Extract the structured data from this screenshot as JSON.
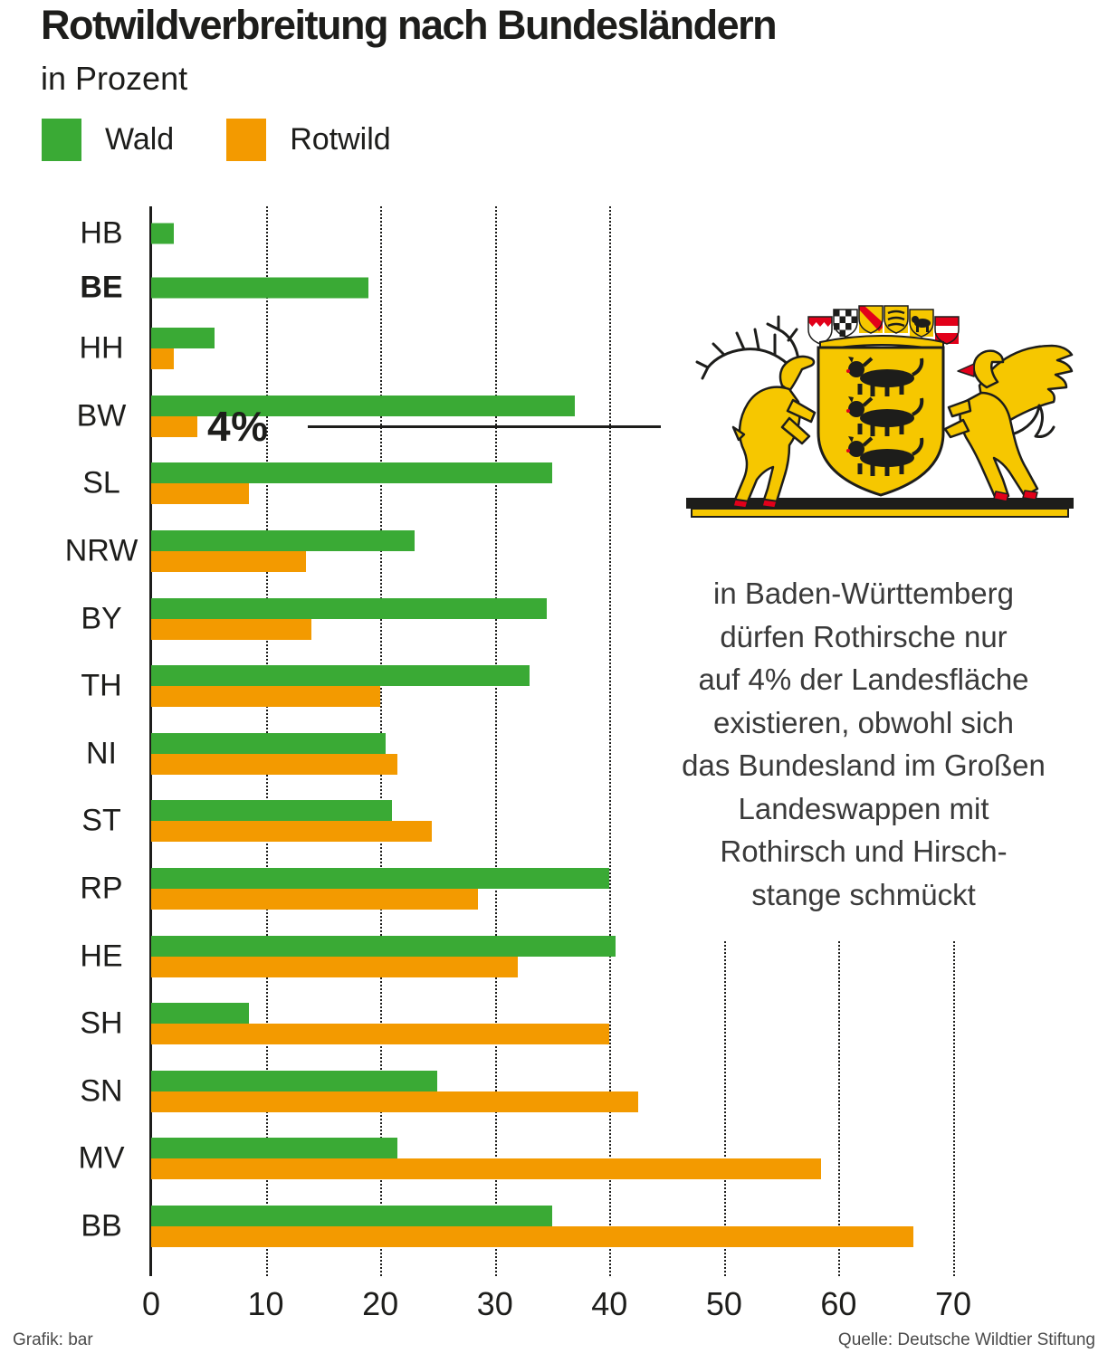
{
  "header": {
    "title": "Rotwildverbreitung nach Bundesländern",
    "subtitle": "in Prozent"
  },
  "colors": {
    "wald_green": "#3aaa35",
    "rotwild_orange": "#f39a00",
    "ink": "#1d1d1b",
    "wappen_gold": "#f6c700",
    "wappen_red": "#e2001a"
  },
  "legend": [
    {
      "label": "Wald",
      "color": "#3aaa35"
    },
    {
      "label": "Rotwild",
      "color": "#f39a00"
    }
  ],
  "chart_data": {
    "type": "bar",
    "orientation": "horizontal",
    "unit": "percent",
    "title": "Rotwildverbreitung nach Bundesländern",
    "subtitle": "in Prozent",
    "grid": "dotted-vertical",
    "legend_position": "top-left",
    "xlim": [
      0,
      70
    ],
    "x_ticks": [
      0,
      10,
      20,
      30,
      40,
      50,
      60,
      70
    ],
    "categories": [
      "HB",
      "BE",
      "HH",
      "BW",
      "SL",
      "NRW",
      "BY",
      "TH",
      "NI",
      "ST",
      "RP",
      "HE",
      "SH",
      "SN",
      "MV",
      "BB"
    ],
    "bold_category": "BE",
    "series": [
      {
        "name": "Wald",
        "color": "#3aaa35",
        "values": [
          2,
          19,
          5.5,
          37,
          35,
          23,
          34.5,
          33,
          20.5,
          21,
          40,
          40.5,
          8.5,
          25,
          21.5,
          35
        ]
      },
      {
        "name": "Rotwild",
        "color": "#f39a00",
        "values": [
          0,
          0,
          2,
          4,
          8.5,
          13.5,
          14,
          20,
          21.5,
          24.5,
          28.5,
          32,
          40,
          42.5,
          58.5,
          66.5
        ]
      }
    ],
    "annotation": {
      "label": "4%",
      "category": "BW",
      "series": "Rotwild"
    }
  },
  "side_note": {
    "lines": [
      "in Baden-Württemberg",
      "dürfen Rothirsche nur",
      "auf 4% der Landesfläche",
      "existieren, obwohl sich",
      "das Bundesland im Großen",
      "Landeswappen mit",
      "Rothirsch und Hirsch-",
      "stange schmückt"
    ]
  },
  "coat_of_arms": {
    "name": "Großes Landeswappen Baden-Württemberg"
  },
  "footer": {
    "credit": "Grafik: bar",
    "source": "Quelle: Deutsche Wildtier Stiftung"
  }
}
